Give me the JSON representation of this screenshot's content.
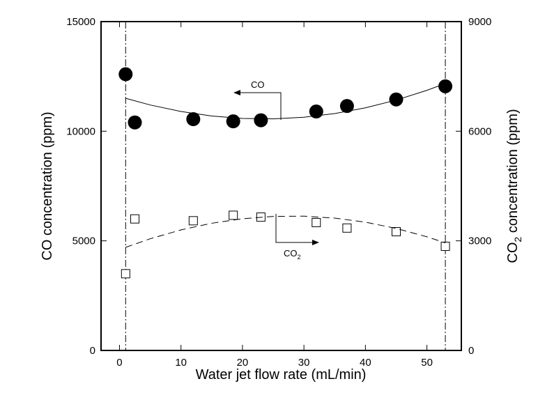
{
  "chart_data": {
    "type": "scatter",
    "xlabel": "Water jet flow rate (mL/min)",
    "ylabel": "CO concentration (ppm)",
    "y2label": {
      "text": "CO",
      "sub": "2",
      "rest": " concentration (ppm)"
    },
    "xlim": [
      -3,
      55.6
    ],
    "xticks": [
      0,
      10,
      20,
      30,
      40,
      50
    ],
    "ylim": [
      0,
      15000
    ],
    "yticks": [
      0,
      5000,
      10000,
      15000
    ],
    "y2lim": [
      0,
      9000
    ],
    "y2ticks": [
      0,
      3000,
      6000,
      9000
    ],
    "vlines": [
      1,
      53
    ],
    "series": [
      {
        "marker": "filled-circle",
        "color": "#000000",
        "axis": "y",
        "x": [
          1,
          2.5,
          12,
          18.5,
          23,
          32,
          37,
          45,
          53
        ],
        "values": [
          12600,
          10400,
          10550,
          10450,
          10500,
          10900,
          11150,
          11450,
          12050
        ]
      },
      {
        "marker": "open-square",
        "color": "#000000",
        "axis": "y2",
        "x": [
          1,
          2.5,
          12,
          18.5,
          23,
          32,
          37,
          45,
          53
        ],
        "values": [
          2100,
          3600,
          3550,
          3700,
          3650,
          3500,
          3350,
          3250,
          2850
        ]
      },
      {
        "marker": "line",
        "style": "solid",
        "color": "#000000",
        "axis": "y",
        "x": [
          1,
          5,
          10,
          15,
          20,
          25,
          30,
          35,
          40,
          45,
          50,
          53
        ],
        "values": [
          11500,
          11196,
          10899,
          10694,
          10583,
          10564,
          10639,
          10806,
          11066,
          11419,
          11865,
          12177
        ]
      },
      {
        "marker": "line",
        "style": "dashed",
        "color": "#000000",
        "axis": "y2",
        "x": [
          1,
          5,
          10,
          15,
          20,
          25,
          30,
          35,
          40,
          45,
          50,
          53
        ],
        "values": [
          2822,
          3057,
          3299,
          3481,
          3605,
          3669,
          3675,
          3622,
          3511,
          3340,
          3110,
          2944
        ]
      }
    ],
    "annotations": [
      {
        "text": "CO"
      },
      {
        "text": "CO",
        "sub": "2"
      }
    ]
  }
}
